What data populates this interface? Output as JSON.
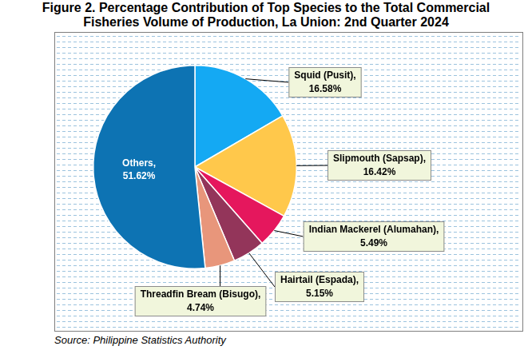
{
  "chart_data": {
    "type": "pie",
    "title": "Figure 2.  Percentage Contribution of Top Species to the Total Commercial Fisheries Volume of Production, La Union: 2nd Quarter 2024",
    "source": "Source: Philippine Statistics Authority",
    "categories": [
      "Squid (Pusit),",
      "Slipmouth (Sapsap),",
      "Indian Mackerel (Alumahan),",
      "Hairtail (Espada),",
      "Threadfin Bream (Bisugo),",
      "Others,"
    ],
    "values": [
      16.58,
      16.42,
      5.49,
      5.15,
      4.74,
      51.62
    ],
    "value_labels": [
      "16.58%",
      "16.42%",
      "5.49%",
      "5.15%",
      "4.74%",
      "51.62%"
    ],
    "colors": [
      "#14a9f3",
      "#ffc84b",
      "#e5175d",
      "#93355a",
      "#e8967b",
      "#0d73b3"
    ],
    "data_labels": true
  }
}
